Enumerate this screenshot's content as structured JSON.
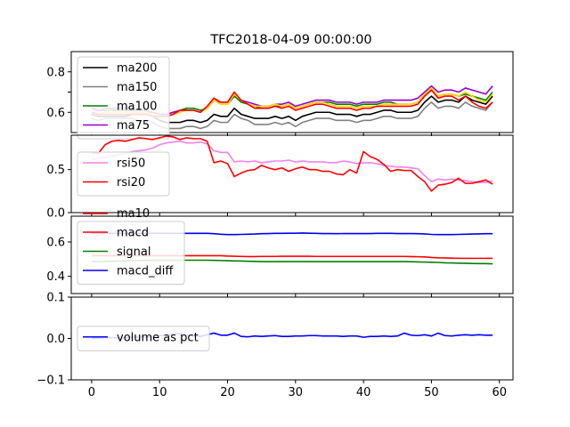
{
  "chart_data": {
    "type": "line",
    "title": "TFC2018-04-09 00:00:00",
    "x_axis": {
      "range": [
        -3,
        62
      ],
      "ticks": [
        0,
        10,
        20,
        30,
        40,
        50,
        60
      ],
      "tick_labels": [
        "0",
        "10",
        "20",
        "30",
        "40",
        "50",
        "60"
      ]
    },
    "panels": [
      {
        "id": "ma",
        "ylim": [
          0.5,
          0.9
        ],
        "yticks": [
          0.6,
          0.7,
          0.8
        ],
        "ytick_labels": [
          "0.6",
          "",
          "0.8"
        ],
        "legend": "upper-left",
        "legend_entries": [
          "ma200",
          "ma150",
          "ma100",
          "ma75"
        ],
        "series": [
          {
            "name": "ma200",
            "color": "#000000",
            "values": [
              0.59,
              0.58,
              0.58,
              0.58,
              0.58,
              0.58,
              0.59,
              0.59,
              0.59,
              0.58,
              0.56,
              0.55,
              0.55,
              0.55,
              0.56,
              0.56,
              0.55,
              0.56,
              0.59,
              0.58,
              0.58,
              0.62,
              0.59,
              0.58,
              0.57,
              0.57,
              0.57,
              0.58,
              0.57,
              0.58,
              0.56,
              0.58,
              0.59,
              0.6,
              0.6,
              0.6,
              0.59,
              0.59,
              0.59,
              0.58,
              0.59,
              0.59,
              0.6,
              0.61,
              0.61,
              0.6,
              0.6,
              0.6,
              0.61,
              0.65,
              0.68,
              0.65,
              0.66,
              0.66,
              0.65,
              0.68,
              0.66,
              0.65,
              0.64,
              0.68
            ]
          },
          {
            "name": "ma150",
            "color": "#808080",
            "values": [
              0.57,
              0.56,
              0.57,
              0.57,
              0.57,
              0.57,
              0.57,
              0.56,
              0.56,
              0.55,
              0.53,
              0.52,
              0.52,
              0.52,
              0.53,
              0.53,
              0.52,
              0.53,
              0.56,
              0.55,
              0.55,
              0.59,
              0.57,
              0.56,
              0.54,
              0.54,
              0.54,
              0.55,
              0.54,
              0.55,
              0.53,
              0.55,
              0.56,
              0.57,
              0.57,
              0.57,
              0.56,
              0.56,
              0.56,
              0.55,
              0.56,
              0.56,
              0.57,
              0.58,
              0.58,
              0.57,
              0.57,
              0.57,
              0.58,
              0.62,
              0.65,
              0.62,
              0.63,
              0.63,
              0.62,
              0.65,
              0.63,
              0.62,
              0.61,
              0.65
            ]
          },
          {
            "name": "ma100",
            "color": "#008000",
            "values": [
              0.62,
              0.61,
              0.61,
              0.61,
              0.61,
              0.61,
              0.61,
              0.6,
              0.6,
              0.6,
              0.59,
              0.59,
              0.6,
              0.61,
              0.62,
              0.62,
              0.61,
              0.62,
              0.66,
              0.64,
              0.64,
              0.68,
              0.65,
              0.64,
              0.63,
              0.62,
              0.62,
              0.63,
              0.63,
              0.64,
              0.62,
              0.63,
              0.64,
              0.65,
              0.65,
              0.65,
              0.64,
              0.64,
              0.64,
              0.63,
              0.64,
              0.64,
              0.64,
              0.65,
              0.65,
              0.64,
              0.64,
              0.64,
              0.65,
              0.68,
              0.71,
              0.68,
              0.69,
              0.69,
              0.68,
              0.69,
              0.68,
              0.67,
              0.66,
              0.7
            ]
          },
          {
            "name": "ma75",
            "color": "#9400d3",
            "values": [
              0.62,
              0.61,
              0.62,
              0.62,
              0.62,
              0.62,
              0.62,
              0.61,
              0.61,
              0.6,
              0.59,
              0.59,
              0.6,
              0.61,
              0.61,
              0.61,
              0.6,
              0.62,
              0.66,
              0.65,
              0.65,
              0.69,
              0.66,
              0.65,
              0.64,
              0.63,
              0.63,
              0.64,
              0.64,
              0.65,
              0.63,
              0.64,
              0.65,
              0.66,
              0.66,
              0.66,
              0.65,
              0.65,
              0.65,
              0.64,
              0.65,
              0.65,
              0.65,
              0.66,
              0.66,
              0.66,
              0.66,
              0.66,
              0.67,
              0.7,
              0.73,
              0.7,
              0.71,
              0.71,
              0.7,
              0.72,
              0.71,
              0.7,
              0.69,
              0.73
            ]
          },
          {
            "name": "",
            "color": "#ffd700",
            "values": [
              0.6,
              0.59,
              0.6,
              0.6,
              0.6,
              0.6,
              0.6,
              0.6,
              0.6,
              0.59,
              0.58,
              0.58,
              0.59,
              0.6,
              0.61,
              0.61,
              0.6,
              0.62,
              0.66,
              0.64,
              0.64,
              0.69,
              0.66,
              0.64,
              0.63,
              0.63,
              0.63,
              0.64,
              0.63,
              0.64,
              0.62,
              0.63,
              0.64,
              0.65,
              0.65,
              0.64,
              0.63,
              0.63,
              0.63,
              0.62,
              0.63,
              0.63,
              0.63,
              0.64,
              0.64,
              0.64,
              0.64,
              0.64,
              0.65,
              0.69,
              0.72,
              0.68,
              0.69,
              0.69,
              0.68,
              0.7,
              0.68,
              0.66,
              0.65,
              0.69
            ]
          },
          {
            "name": "",
            "color": "#ff0000",
            "values": [
              0.6,
              0.59,
              0.59,
              0.59,
              0.59,
              0.59,
              0.59,
              0.59,
              0.59,
              0.58,
              0.58,
              0.58,
              0.59,
              0.61,
              0.61,
              0.61,
              0.6,
              0.63,
              0.67,
              0.65,
              0.65,
              0.7,
              0.66,
              0.64,
              0.62,
              0.62,
              0.62,
              0.63,
              0.62,
              0.63,
              0.61,
              0.62,
              0.63,
              0.64,
              0.64,
              0.63,
              0.62,
              0.62,
              0.62,
              0.61,
              0.62,
              0.62,
              0.63,
              0.63,
              0.63,
              0.63,
              0.63,
              0.63,
              0.64,
              0.68,
              0.71,
              0.67,
              0.68,
              0.68,
              0.66,
              0.68,
              0.65,
              0.63,
              0.62,
              0.65
            ]
          }
        ]
      },
      {
        "id": "rsi",
        "ylim": [
          0,
          0.9
        ],
        "yticks": [
          0,
          0.5
        ],
        "ytick_labels": [
          "0.0",
          "0.5"
        ],
        "legend": "center-left",
        "legend_entries": [
          "rsi50",
          "rsi20"
        ],
        "series": [
          {
            "name": "rsi50",
            "color": "#ee82ee",
            "values": [
              0.62,
              0.63,
              0.64,
              0.66,
              0.67,
              0.69,
              0.71,
              0.72,
              0.73,
              0.75,
              0.79,
              0.81,
              0.82,
              0.83,
              0.81,
              0.81,
              0.82,
              0.8,
              0.72,
              0.7,
              0.7,
              0.59,
              0.6,
              0.59,
              0.6,
              0.58,
              0.59,
              0.6,
              0.6,
              0.61,
              0.59,
              0.6,
              0.59,
              0.59,
              0.59,
              0.58,
              0.58,
              0.6,
              0.59,
              0.57,
              0.58,
              0.58,
              0.57,
              0.55,
              0.54,
              0.53,
              0.53,
              0.52,
              0.51,
              0.43,
              0.36,
              0.39,
              0.38,
              0.39,
              0.38,
              0.37,
              0.36,
              0.35,
              0.35,
              0.37
            ]
          },
          {
            "name": "rsi20",
            "color": "#ff0000",
            "values": [
              0.7,
              0.69,
              0.79,
              0.83,
              0.84,
              0.83,
              0.85,
              0.87,
              0.86,
              0.85,
              0.87,
              0.89,
              0.88,
              0.85,
              0.87,
              0.86,
              0.86,
              0.83,
              0.58,
              0.6,
              0.57,
              0.42,
              0.46,
              0.49,
              0.5,
              0.55,
              0.52,
              0.5,
              0.52,
              0.48,
              0.51,
              0.53,
              0.5,
              0.5,
              0.48,
              0.48,
              0.45,
              0.44,
              0.5,
              0.46,
              0.71,
              0.65,
              0.62,
              0.56,
              0.48,
              0.5,
              0.49,
              0.49,
              0.42,
              0.36,
              0.25,
              0.32,
              0.33,
              0.35,
              0.4,
              0.34,
              0.34,
              0.36,
              0.38,
              0.33
            ]
          }
        ]
      },
      {
        "id": "macd",
        "ylim": [
          0.3,
          0.75
        ],
        "yticks": [
          0.4,
          0.6
        ],
        "ytick_labels": [
          "0.4",
          "0.6"
        ],
        "legend": "upper-left",
        "legend_overlap_label": "ma10",
        "legend_entries": [
          "macd",
          "signal",
          "macd_diff"
        ],
        "series": [
          {
            "name": "macd",
            "color": "#ff0000",
            "values": [
              0.52,
              0.52,
              0.52,
              0.52,
              0.52,
              0.52,
              0.52,
              0.52,
              0.52,
              0.52,
              0.52,
              0.52,
              0.52,
              0.52,
              0.52,
              0.52,
              0.52,
              0.52,
              0.52,
              0.52,
              0.518,
              0.517,
              0.516,
              0.515,
              0.515,
              0.516,
              0.516,
              0.516,
              0.517,
              0.517,
              0.517,
              0.517,
              0.517,
              0.516,
              0.516,
              0.516,
              0.516,
              0.516,
              0.516,
              0.516,
              0.516,
              0.516,
              0.516,
              0.516,
              0.516,
              0.516,
              0.516,
              0.515,
              0.514,
              0.513,
              0.51,
              0.508,
              0.507,
              0.506,
              0.505,
              0.505,
              0.505,
              0.505,
              0.505,
              0.505
            ]
          },
          {
            "name": "signal",
            "color": "#008000",
            "values": [
              0.485,
              0.486,
              0.487,
              0.488,
              0.489,
              0.49,
              0.491,
              0.492,
              0.493,
              0.494,
              0.494,
              0.494,
              0.494,
              0.494,
              0.494,
              0.494,
              0.494,
              0.494,
              0.493,
              0.492,
              0.491,
              0.49,
              0.489,
              0.488,
              0.487,
              0.486,
              0.486,
              0.486,
              0.486,
              0.486,
              0.486,
              0.486,
              0.486,
              0.486,
              0.486,
              0.486,
              0.486,
              0.486,
              0.486,
              0.486,
              0.486,
              0.486,
              0.486,
              0.486,
              0.486,
              0.486,
              0.486,
              0.485,
              0.484,
              0.483,
              0.482,
              0.481,
              0.479,
              0.478,
              0.477,
              0.476,
              0.475,
              0.474,
              0.474,
              0.473
            ]
          },
          {
            "name": "macd_diff",
            "color": "#0000ff",
            "values": [
              0.65,
              0.65,
              0.65,
              0.65,
              0.65,
              0.65,
              0.65,
              0.65,
              0.65,
              0.65,
              0.65,
              0.65,
              0.65,
              0.65,
              0.65,
              0.65,
              0.65,
              0.65,
              0.648,
              0.645,
              0.643,
              0.643,
              0.644,
              0.645,
              0.646,
              0.648,
              0.649,
              0.65,
              0.65,
              0.651,
              0.651,
              0.652,
              0.651,
              0.65,
              0.649,
              0.649,
              0.648,
              0.649,
              0.649,
              0.649,
              0.649,
              0.649,
              0.65,
              0.65,
              0.65,
              0.649,
              0.649,
              0.649,
              0.648,
              0.647,
              0.644,
              0.643,
              0.643,
              0.643,
              0.644,
              0.645,
              0.646,
              0.647,
              0.648,
              0.648
            ]
          }
        ]
      },
      {
        "id": "volume",
        "ylim": [
          -0.1,
          0.1
        ],
        "yticks": [
          -0.1,
          0,
          0.1
        ],
        "ytick_labels": [
          "−0.1",
          "0.0",
          "0.1"
        ],
        "legend": "center-left",
        "legend_entries": [
          "volume as pct"
        ],
        "series": [
          {
            "name": "volume as pct",
            "color": "#0000ff",
            "values": [
              0.0,
              0.001,
              0.002,
              0.002,
              0.001,
              0.002,
              0.003,
              0.004,
              0.003,
              0.004,
              0.007,
              0.008,
              0.01,
              0.012,
              0.008,
              0.006,
              0.005,
              0.009,
              0.013,
              0.008,
              0.008,
              0.013,
              0.005,
              0.004,
              0.006,
              0.005,
              0.006,
              0.007,
              0.005,
              0.005,
              0.006,
              0.006,
              0.007,
              0.007,
              0.006,
              0.006,
              0.006,
              0.005,
              0.006,
              0.006,
              0.003,
              0.005,
              0.005,
              0.006,
              0.005,
              0.006,
              0.013,
              0.008,
              0.007,
              0.009,
              0.006,
              0.013,
              0.007,
              0.006,
              0.008,
              0.009,
              0.008,
              0.009,
              0.008,
              0.008
            ]
          }
        ]
      }
    ]
  }
}
